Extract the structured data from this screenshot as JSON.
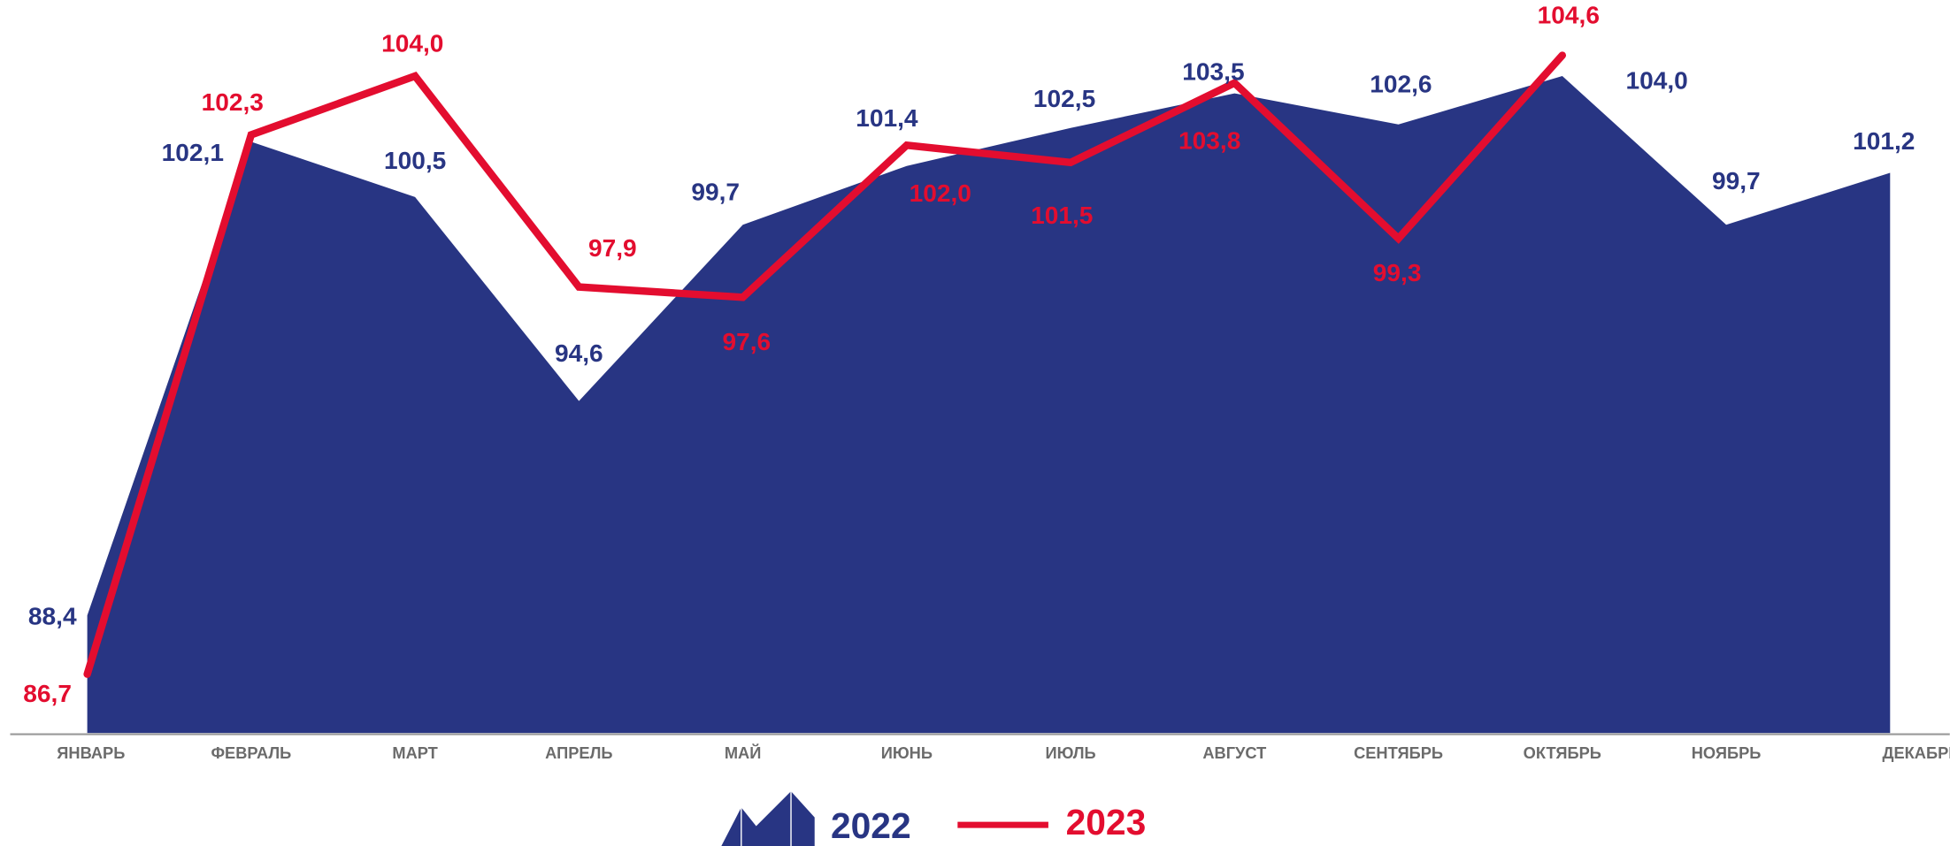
{
  "chart_data": {
    "type": "area_line",
    "categories": [
      "ЯНВАРЬ",
      "ФЕВРАЛЬ",
      "МАРТ",
      "АПРЕЛЬ",
      "МАЙ",
      "ИЮНЬ",
      "ИЮЛЬ",
      "АВГУСТ",
      "СЕНТЯБРЬ",
      "ОКТЯБРЬ",
      "НОЯБРЬ",
      "ДЕКАБРЬ"
    ],
    "series": [
      {
        "name": "2022",
        "color": "#283583",
        "kind": "area",
        "values": [
          88.4,
          102.1,
          100.5,
          94.6,
          99.7,
          101.4,
          102.5,
          103.5,
          102.6,
          104.0,
          99.7,
          101.2
        ],
        "value_labels": [
          "88,4",
          "102,1",
          "100,5",
          "94,6",
          "99,7",
          "101,4",
          "102,5",
          "103,5",
          "102,6",
          "104,0",
          "99,7",
          "101,2"
        ]
      },
      {
        "name": "2023",
        "color": "#e30d2f",
        "kind": "line",
        "values": [
          86.7,
          102.3,
          104.0,
          97.9,
          97.6,
          102.0,
          101.5,
          103.8,
          99.3,
          104.6,
          null,
          null
        ],
        "value_labels": [
          "86,7",
          "102,3",
          "104,0",
          "97,9",
          "97,6",
          "102,0",
          "101,5",
          "103,8",
          "99,3",
          "104,6",
          null,
          null
        ]
      }
    ],
    "ylim": [
      85,
      106.2
    ]
  }
}
